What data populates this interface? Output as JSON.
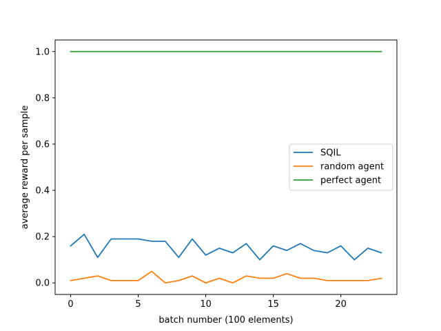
{
  "chart_data": {
    "type": "line",
    "title": "",
    "xlabel": "batch number (100 elements)",
    "ylabel": "average reward per sample",
    "xlim": [
      -1.15,
      24.15
    ],
    "ylim": [
      -0.05,
      1.05
    ],
    "xticks": [
      0,
      5,
      10,
      15,
      20
    ],
    "xtick_labels": [
      "0",
      "5",
      "10",
      "15",
      "20"
    ],
    "yticks": [
      0.0,
      0.2,
      0.4,
      0.6,
      0.8,
      1.0
    ],
    "ytick_labels": [
      "0.0",
      "0.2",
      "0.4",
      "0.6",
      "0.8",
      "1.0"
    ],
    "grid": false,
    "legend_position": "center-right",
    "x": [
      0,
      1,
      2,
      3,
      4,
      5,
      6,
      7,
      8,
      9,
      10,
      11,
      12,
      13,
      14,
      15,
      16,
      17,
      18,
      19,
      20,
      21,
      22,
      23
    ],
    "series": [
      {
        "name": "SQIL",
        "color": "#1f77b4",
        "values": [
          0.16,
          0.21,
          0.11,
          0.19,
          0.19,
          0.19,
          0.18,
          0.18,
          0.11,
          0.19,
          0.12,
          0.15,
          0.13,
          0.17,
          0.1,
          0.16,
          0.14,
          0.17,
          0.14,
          0.13,
          0.16,
          0.1,
          0.15,
          0.13
        ]
      },
      {
        "name": "random agent",
        "color": "#ff7f0e",
        "values": [
          0.01,
          0.02,
          0.03,
          0.01,
          0.01,
          0.01,
          0.05,
          0.0,
          0.01,
          0.03,
          0.0,
          0.02,
          0.0,
          0.03,
          0.02,
          0.02,
          0.04,
          0.02,
          0.02,
          0.01,
          0.01,
          0.01,
          0.01,
          0.02
        ]
      },
      {
        "name": "perfect agent",
        "color": "#2ca02c",
        "values": [
          1,
          1,
          1,
          1,
          1,
          1,
          1,
          1,
          1,
          1,
          1,
          1,
          1,
          1,
          1,
          1,
          1,
          1,
          1,
          1,
          1,
          1,
          1,
          1
        ]
      }
    ]
  }
}
